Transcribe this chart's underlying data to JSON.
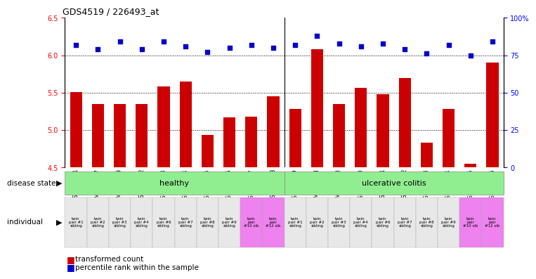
{
  "title": "GDS4519 / 226493_at",
  "samples": [
    "GSM560961",
    "GSM1012177",
    "GSM1012179",
    "GSM560962",
    "GSM560963",
    "GSM560964",
    "GSM560965",
    "GSM560966",
    "GSM560967",
    "GSM560968",
    "GSM560969",
    "GSM1012178",
    "GSM1012180",
    "GSM560970",
    "GSM560971",
    "GSM560972",
    "GSM560973",
    "GSM560974",
    "GSM560975",
    "GSM560976"
  ],
  "bar_values": [
    5.51,
    5.35,
    5.35,
    5.35,
    5.58,
    5.65,
    4.94,
    5.17,
    5.18,
    5.45,
    5.28,
    6.08,
    5.35,
    5.56,
    5.48,
    5.7,
    4.83,
    5.28,
    4.55,
    5.9
  ],
  "dot_values": [
    82,
    79,
    84,
    79,
    84,
    81,
    77,
    80,
    82,
    80,
    82,
    88,
    83,
    81,
    83,
    79,
    76,
    82,
    75,
    84
  ],
  "ymin": 4.5,
  "ymax": 6.5,
  "ylim_right": [
    0,
    100
  ],
  "yticks_left": [
    4.5,
    5.0,
    5.5,
    6.0,
    6.5
  ],
  "yticks_right": [
    0,
    25,
    50,
    75,
    100
  ],
  "ytick_labels_right": [
    "0",
    "25",
    "50",
    "75",
    "100%"
  ],
  "hlines": [
    5.0,
    5.5,
    6.0
  ],
  "healthy_count": 10,
  "bar_color": "#cc0000",
  "dot_color": "#0000cc",
  "disease_state_healthy_color": "#90EE90",
  "disease_state_uc_color": "#90EE90",
  "individual_colors_normal": "#e8e8e8",
  "individual_colors_violet": "#ee82ee",
  "individual_labels": [
    "twin\npair #1\nsibling",
    "twin\npair #2\nsibling",
    "twin\npair #3\nsibling",
    "twin\npair #4\nsibling",
    "twin\npair #6\nsibling",
    "twin\npair #7\nsibling",
    "twin\npair #8\nsibling",
    "twin\npair #9\nsibling",
    "twin\npair\n#10 sib",
    "twin\npair\n#12 sib",
    "twin\npair #1\nsibling",
    "twin\npair #2\nsibling",
    "twin\npair #3\nsibling",
    "twin\npair #4\nsibling",
    "twin\npair #6\nsibling",
    "twin\npair #7\nsibling",
    "twin\npair #8\nsibling",
    "twin\npair #9\nsibling",
    "twin\npair\n#10 sib",
    "twin\npair\n#12 sib"
  ],
  "individual_is_violet": [
    false,
    false,
    false,
    false,
    false,
    false,
    false,
    false,
    true,
    true,
    false,
    false,
    false,
    false,
    false,
    false,
    false,
    false,
    true,
    true
  ],
  "background_color": "#ffffff"
}
